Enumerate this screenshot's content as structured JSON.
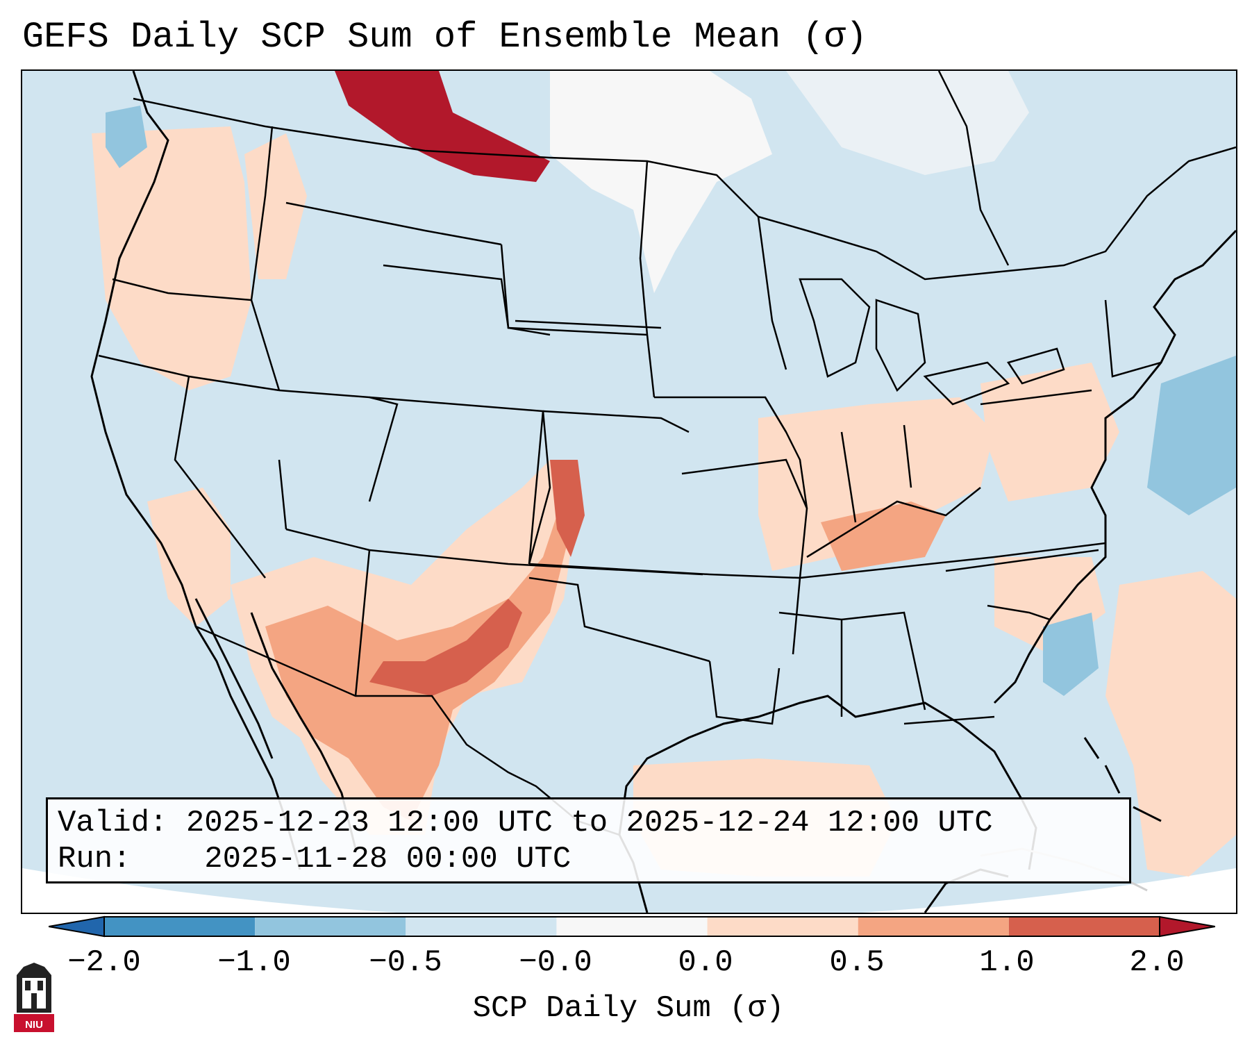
{
  "title": "GEFS Daily SCP Sum of Ensemble Mean (σ)",
  "info": {
    "valid_label": "Valid:",
    "valid_value": "2025-12-23 12:00 UTC to 2025-12-24 12:00 UTC",
    "run_label": "Run:",
    "run_value": "2025-11-28 00:00 UTC"
  },
  "colorbar": {
    "label": "SCP Daily Sum (σ)",
    "ticks": [
      "−2.0",
      "−1.0",
      "−0.5",
      "−0.0",
      "0.0",
      "0.5",
      "1.0",
      "2.0"
    ],
    "bins": [
      {
        "from": -2.0,
        "to": -1.0,
        "color": "#4393c3"
      },
      {
        "from": -1.0,
        "to": -0.5,
        "color": "#92c5de"
      },
      {
        "from": -0.5,
        "to": -0.0,
        "color": "#d1e5f0"
      },
      {
        "from": -0.0,
        "to": 0.0,
        "color": "#f7f7f7"
      },
      {
        "from": 0.0,
        "to": 0.5,
        "color": "#fddbc7"
      },
      {
        "from": 0.5,
        "to": 1.0,
        "color": "#f4a582"
      },
      {
        "from": 1.0,
        "to": 2.0,
        "color": "#d6604d"
      }
    ],
    "under_color": "#2166ac",
    "over_color": "#b2182b"
  },
  "map": {
    "projection": "conic",
    "region": "Contiguous United States, southern Canada, northern Mexico",
    "background_anomaly_color": "#d1e5f0",
    "features": [
      "coastlines",
      "state borders",
      "country borders"
    ]
  },
  "logo": {
    "text": "NIU"
  }
}
